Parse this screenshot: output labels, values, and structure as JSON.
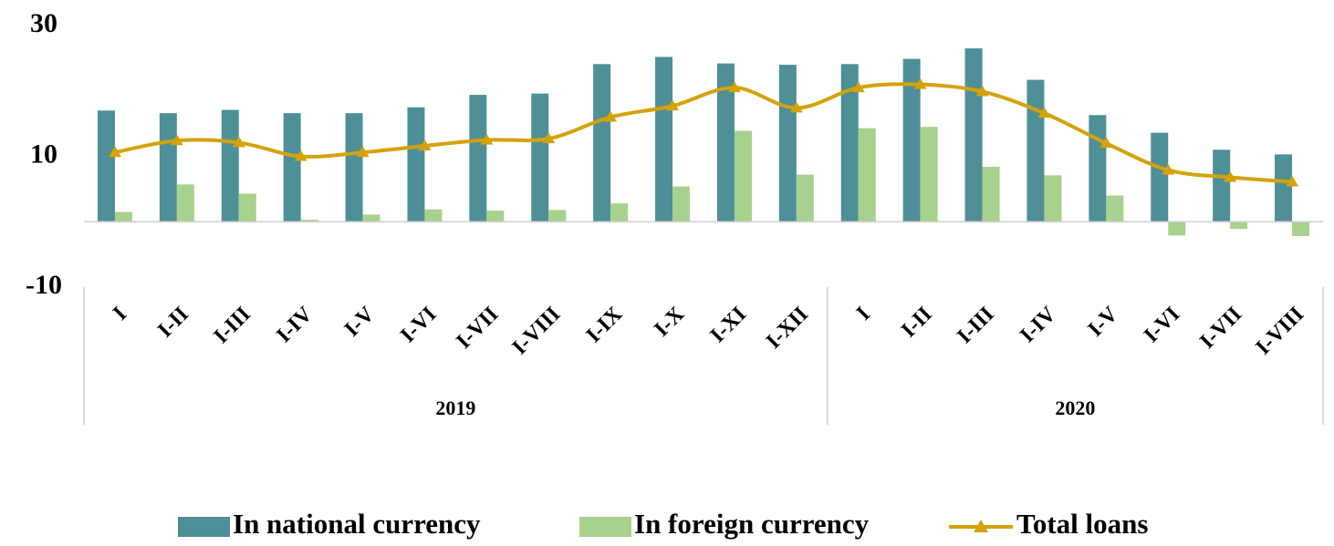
{
  "chart_data": {
    "type": "bar_line",
    "groups": [
      {
        "name": "2019",
        "categories": [
          "I",
          "I-II",
          "I-III",
          "I-IV",
          "I-V",
          "I-VI",
          "I-VII",
          "I-VIII",
          "I-IX",
          "I-X",
          "I-XI",
          "I-XII"
        ]
      },
      {
        "name": "2020",
        "categories": [
          "I",
          "I-II",
          "I-III",
          "I-IV",
          "I-V",
          "I-VI",
          "I-VII",
          "I-VIII"
        ]
      }
    ],
    "series": [
      {
        "name": "In national currency",
        "type": "bar",
        "color": "#4e8f98",
        "values": [
          17.0,
          16.6,
          17.1,
          16.6,
          16.6,
          17.5,
          19.4,
          19.6,
          24.1,
          25.2,
          24.2,
          24.0,
          24.1,
          24.9,
          26.5,
          21.7,
          16.3,
          13.6,
          11.0,
          10.3
        ]
      },
      {
        "name": "In foreign currency",
        "type": "bar",
        "color": "#a9d18e",
        "values": [
          1.5,
          5.7,
          4.3,
          0.3,
          1.1,
          1.9,
          1.7,
          1.8,
          2.8,
          5.4,
          13.9,
          7.2,
          14.3,
          14.5,
          8.4,
          7.1,
          4.0,
          -2.1,
          -1.1,
          -2.2
        ]
      },
      {
        "name": "Total loans",
        "type": "line",
        "color": "#d4a20a",
        "values": [
          10.6,
          12.4,
          12.1,
          10.0,
          10.6,
          11.6,
          12.5,
          12.7,
          16.0,
          17.7,
          20.5,
          17.4,
          20.5,
          21.0,
          19.9,
          16.6,
          12.0,
          7.9,
          6.8,
          6.1
        ]
      }
    ],
    "ylim": [
      -10,
      30
    ],
    "yticks": [
      -10,
      10,
      30
    ],
    "grid": false
  }
}
